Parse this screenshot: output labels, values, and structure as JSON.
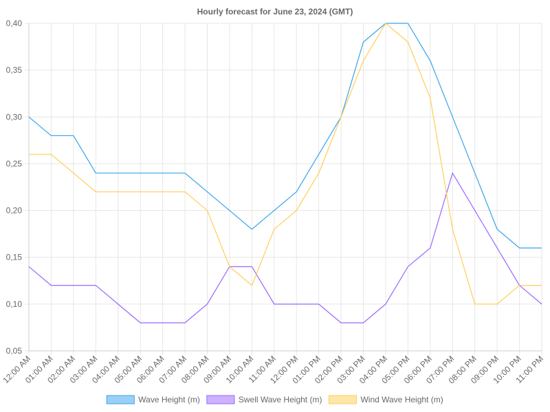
{
  "chart_data": {
    "type": "line",
    "title": "Hourly forecast for June 23, 2024 (GMT)",
    "xlabel": "",
    "ylabel": "",
    "categories": [
      "12:00 AM",
      "01:00 AM",
      "02:00 AM",
      "03:00 AM",
      "04:00 AM",
      "05:00 AM",
      "06:00 AM",
      "07:00 AM",
      "08:00 AM",
      "09:00 AM",
      "10:00 AM",
      "11:00 AM",
      "12:00 PM",
      "01:00 PM",
      "02:00 PM",
      "03:00 PM",
      "04:00 PM",
      "05:00 PM",
      "06:00 PM",
      "07:00 PM",
      "08:00 PM",
      "09:00 PM",
      "10:00 PM",
      "11:00 PM"
    ],
    "ylim": [
      0.05,
      0.4
    ],
    "yticks": [
      "0,05",
      "0,10",
      "0,15",
      "0,20",
      "0,25",
      "0,30",
      "0,35",
      "0,40"
    ],
    "grid": true,
    "legend_position": "bottom",
    "series": [
      {
        "name": "Wave Height (m)",
        "color": "#36a2eb",
        "fill": "#9ad0f5",
        "values": [
          0.3,
          0.28,
          0.28,
          0.24,
          0.24,
          0.24,
          0.24,
          0.24,
          0.22,
          0.2,
          0.18,
          0.2,
          0.22,
          0.26,
          0.3,
          0.38,
          0.4,
          0.4,
          0.36,
          0.3,
          0.24,
          0.18,
          0.16,
          0.16
        ]
      },
      {
        "name": "Swell Wave Height (m)",
        "color": "#9966ff",
        "fill": "#ccb2ff",
        "values": [
          0.14,
          0.12,
          0.12,
          0.12,
          0.1,
          0.08,
          0.08,
          0.08,
          0.1,
          0.14,
          0.14,
          0.1,
          0.1,
          0.1,
          0.08,
          0.08,
          0.1,
          0.14,
          0.16,
          0.24,
          0.2,
          0.16,
          0.12,
          0.1
        ]
      },
      {
        "name": "Wind Wave Height (m)",
        "color": "#ffcd56",
        "fill": "#ffe6aa",
        "values": [
          0.26,
          0.26,
          0.24,
          0.22,
          0.22,
          0.22,
          0.22,
          0.22,
          0.2,
          0.14,
          0.12,
          0.18,
          0.2,
          0.24,
          0.3,
          0.36,
          0.4,
          0.38,
          0.32,
          0.18,
          0.1,
          0.1,
          0.12,
          0.12
        ]
      }
    ]
  }
}
